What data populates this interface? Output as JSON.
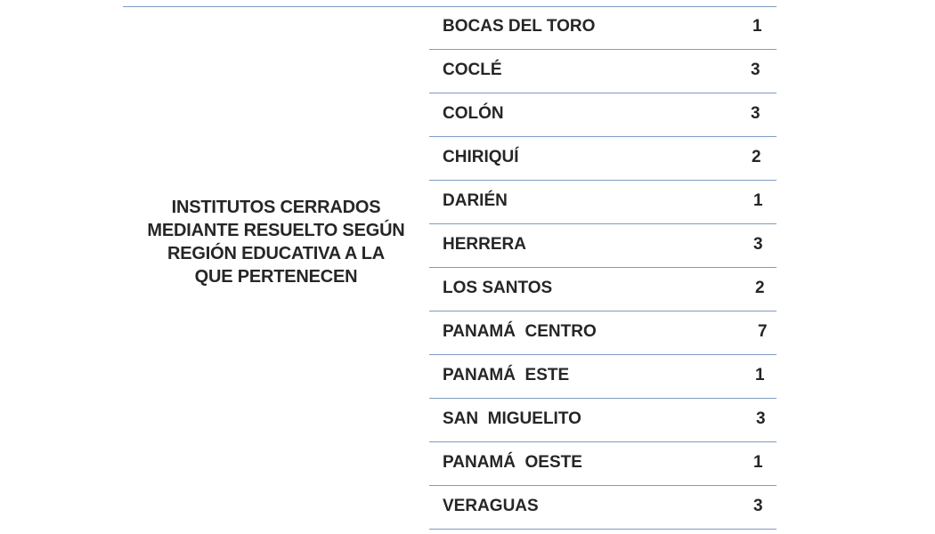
{
  "caption": {
    "line1": "INSTITUTOS CERRADOS",
    "line2": "MEDIANTE RESUELTO SEGÚN",
    "line3": "REGIÓN EDUCATIVA A LA",
    "line4": "QUE PERTENECEN"
  },
  "rows": [
    {
      "region": "BOCAS DEL TORO",
      "count": "1"
    },
    {
      "region": "COCLÉ",
      "count": "3"
    },
    {
      "region": "COLÓN",
      "count": "3"
    },
    {
      "region": "CHIRIQUÍ",
      "count": "2"
    },
    {
      "region": "DARIÉN",
      "count": "1"
    },
    {
      "region": "HERRERA",
      "count": "3"
    },
    {
      "region": "LOS SANTOS",
      "count": "2"
    },
    {
      "region": "PANAMÁ  CENTRO",
      "count": "7"
    },
    {
      "region": "PANAMÁ  ESTE",
      "count": "1"
    },
    {
      "region": "SAN  MIGUELITO",
      "count": "3"
    },
    {
      "region": "PANAMÁ  OESTE",
      "count": "1"
    },
    {
      "region": "VERAGUAS",
      "count": "3"
    }
  ],
  "colors": {
    "rule": "#7f9cc4",
    "text": "#262626"
  }
}
